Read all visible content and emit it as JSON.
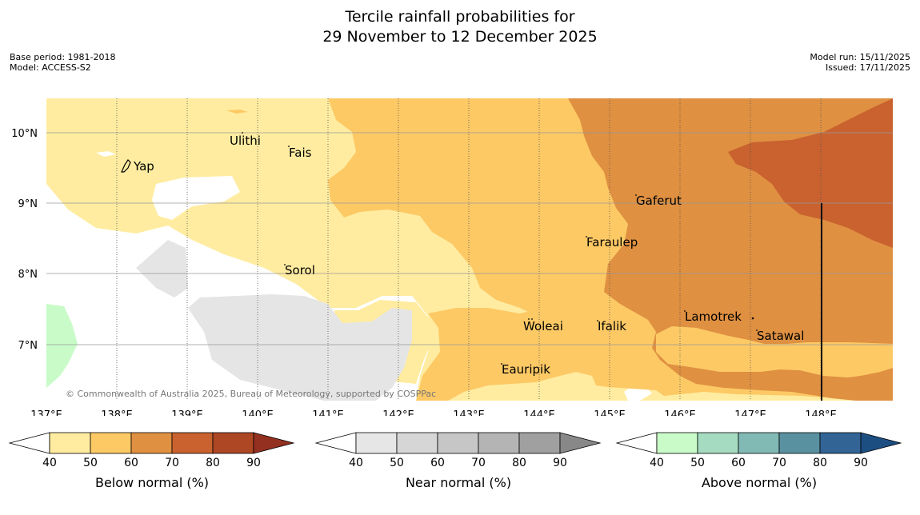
{
  "title": {
    "line1": "Tercile rainfall probabilities for",
    "line2": "29 November to 12 December 2025"
  },
  "meta": {
    "base_period": "Base period: 1981-2018",
    "model": "Model: ACCESS-S2",
    "model_run": "Model run: 15/11/2025",
    "issued": "Issued: 17/11/2025"
  },
  "map": {
    "lat_labels": [
      "10°N",
      "9°N",
      "8°N",
      "7°N"
    ],
    "lon_labels": [
      "137°E",
      "138°E",
      "139°E",
      "140°E",
      "141°E",
      "142°E",
      "143°E",
      "144°E",
      "145°E",
      "146°E",
      "147°E",
      "148°E"
    ],
    "places": [
      "Ulithi",
      "Fais",
      "Yap",
      "Gaferut",
      "Faraulep",
      "Sorol",
      "Lamotrek",
      "Woleai",
      "Ifalik",
      "Satawal",
      "Eauripik"
    ],
    "copyright": "© Commonwealth of Australia 2025, Bureau of Meteorology, supported by COSPPac"
  },
  "colorbars": [
    {
      "label": "Below normal (%)",
      "ticks": [
        "40",
        "50",
        "60",
        "70",
        "80",
        "90"
      ],
      "colors": [
        "#ffeca0",
        "#fdc965",
        "#df9041",
        "#c9622f",
        "#ad4724",
        "#933020"
      ]
    },
    {
      "label": "Near normal (%)",
      "ticks": [
        "40",
        "50",
        "60",
        "70",
        "80",
        "90"
      ],
      "colors": [
        "#e6e6e6",
        "#d6d6d6",
        "#c6c6c6",
        "#b4b4b4",
        "#a0a0a0",
        "#888888"
      ]
    },
    {
      "label": "Above normal (%)",
      "ticks": [
        "40",
        "50",
        "60",
        "70",
        "80",
        "90"
      ],
      "colors": [
        "#c8fbc8",
        "#a5dbc0",
        "#81b9b4",
        "#5a91a0",
        "#326596",
        "#1c4e82"
      ]
    }
  ]
}
